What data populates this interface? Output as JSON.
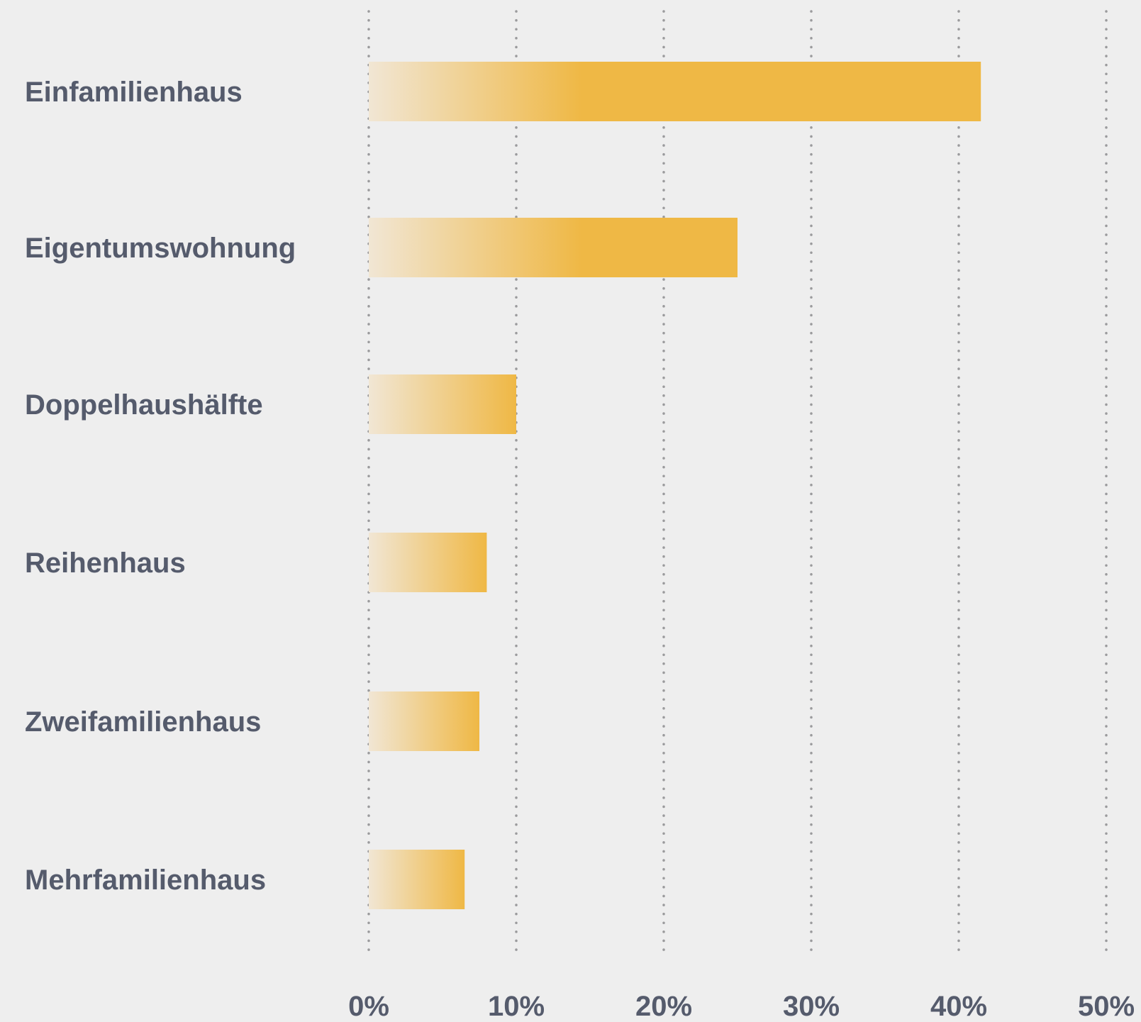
{
  "chart_data": {
    "type": "bar",
    "orientation": "horizontal",
    "categories": [
      "Einfamilienhaus",
      "Eigentumswohnung",
      "Doppelhaushälfte",
      "Reihenhaus",
      "Zweifamilienhaus",
      "Mehrfamilienhaus"
    ],
    "values": [
      41.5,
      25,
      10,
      8,
      7.5,
      6.5
    ],
    "ticks": [
      "0%",
      "10%",
      "20%",
      "30%",
      "40%",
      "50%"
    ],
    "xlim": [
      0,
      50
    ],
    "grid": "vertical dotted",
    "colors": {
      "bar_start": "#f1e6d4",
      "bar_end": "#efb845",
      "text": "#555b6c",
      "grid": "#9a9a9c",
      "background": "#eeeeee"
    }
  }
}
